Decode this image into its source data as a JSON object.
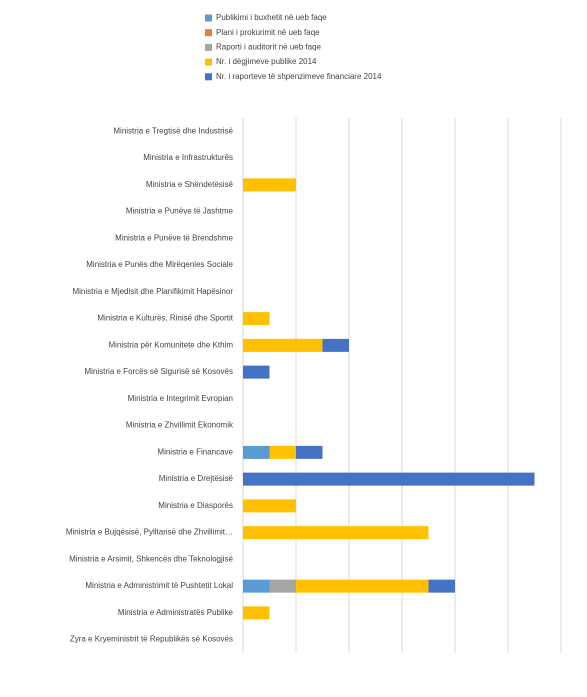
{
  "chart_data": {
    "type": "stacked-bar-horizontal",
    "categories": [
      "Ministria e Tregtisë dhe Industrisë",
      "Ministria e Infrastrukturës",
      "Ministria e Shëndetësisë",
      "Ministria e Punëve të Jashtme",
      "Ministria e Punëve të Brendshme",
      "Ministria e Punës dhe Mirëqenies Sociale",
      "Ministria e Mjedisit dhe Planifikimit Hapësinor",
      "Ministria e Kulturës, Rinisë dhe Sportit",
      "Ministria për Komunitete dhe Kthim",
      "Ministria e Forcës së Sigurisë së Kosovës",
      "Ministria e Integrimit Evropian",
      "Ministria e Zhvillimit Ekonomik",
      "Ministria e Financave",
      "Ministria e Drejtësisë",
      "Ministria e Diasporës",
      "Ministria e Bujqësisë, Pylltarisë dhe Zhvillimit…",
      "Ministria e Arsimit, Shkencës dhe Teknologjisë",
      "Ministria e Administrimit të Pushtetit Lokal",
      "Ministria e Administratës Publike",
      "Zyra e Kryeministrit të Republikës së Kosovës"
    ],
    "series": [
      {
        "name": "Publikimi i buxhetit në ueb faqe",
        "color": "#5b9bd5",
        "values": [
          0,
          0,
          0,
          0,
          0,
          0,
          0,
          0,
          0,
          0,
          0,
          0,
          0.5,
          0,
          0,
          0,
          0,
          0.5,
          0,
          0
        ]
      },
      {
        "name": "Plani i prokurimit në ueb faqe",
        "color": "#ed7d31",
        "values": [
          0,
          0,
          0,
          0,
          0,
          0,
          0,
          0,
          0,
          0,
          0,
          0,
          0,
          0,
          0,
          0,
          0,
          0,
          0,
          0
        ]
      },
      {
        "name": "Raporti i auditorit në ueb faqe",
        "color": "#a5a5a5",
        "values": [
          0,
          0,
          0,
          0,
          0,
          0,
          0,
          0,
          0,
          0,
          0,
          0,
          0,
          0,
          0,
          0,
          0,
          0.5,
          0,
          0
        ]
      },
      {
        "name": "Nr. i dëgjimeve publike  2014",
        "color": "#ffc000",
        "values": [
          0,
          0,
          1,
          0,
          0,
          0,
          0,
          0.5,
          1.5,
          0,
          0,
          0,
          0.5,
          0,
          1,
          3.5,
          0,
          2.5,
          0.5,
          0
        ]
      },
      {
        "name": "Nr. i raporteve të shpenzimeve financiare 2014",
        "color": "#4472c4",
        "values": [
          0,
          0,
          0,
          0,
          0,
          0,
          0,
          0,
          0.5,
          0.5,
          0,
          0,
          0.5,
          5.5,
          0,
          0,
          0,
          0.5,
          0,
          0
        ]
      }
    ],
    "xlim": [
      0,
      6
    ],
    "xticks": [
      0,
      1,
      2,
      3,
      4,
      5,
      6
    ],
    "grid": true
  }
}
